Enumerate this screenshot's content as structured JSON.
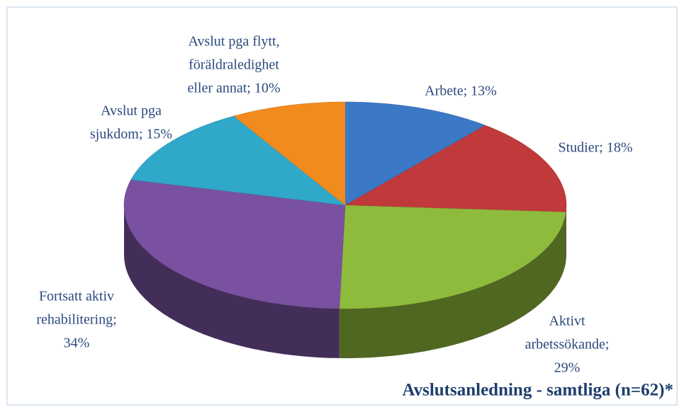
{
  "chart_data": {
    "type": "pie3d",
    "title": "Avslutsanledning  - samtliga (n=62)*",
    "values": [
      13,
      18,
      29,
      34,
      15,
      10
    ],
    "value_labels": [
      [
        "Arbete; 13%"
      ],
      [
        "Studier; 18%"
      ],
      [
        "Aktivt",
        "arbetssökande;",
        "29%"
      ],
      [
        "Fortsatt aktiv",
        "rehabilitering;",
        "34%"
      ],
      [
        "Avslut pga",
        "sjukdom; 15%"
      ],
      [
        "Avslut pga flytt,",
        "föräldraledighet",
        "eller annat; 10%"
      ]
    ],
    "colors": [
      "#3b78c6",
      "#c0393b",
      "#8fbb3c",
      "#7a51a1",
      "#2fa8c9",
      "#f28b1e"
    ]
  }
}
